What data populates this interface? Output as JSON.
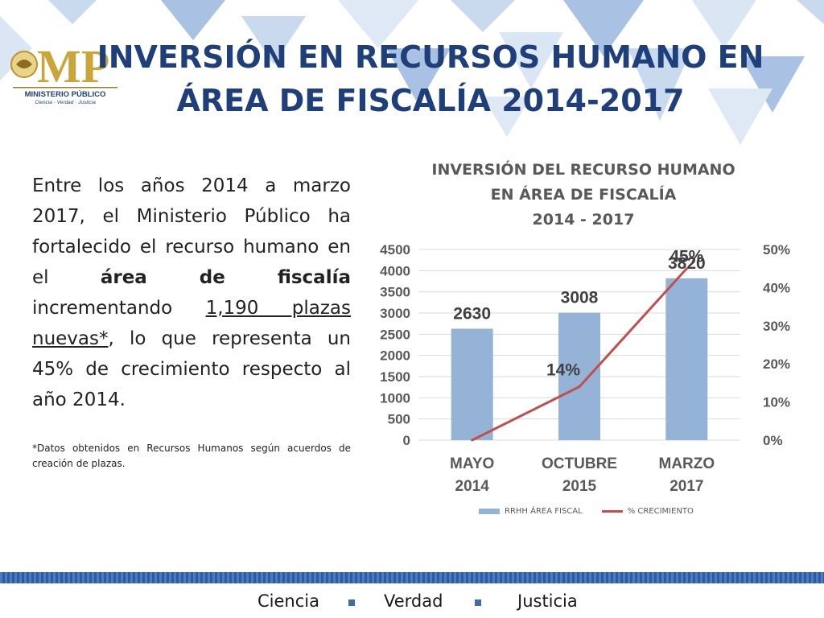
{
  "slide": {
    "title_line1": "INVERSIÓN EN RECURSOS HUMANO EN",
    "title_line2": "ÁREA DE FISCALÍA 2014-2017",
    "logo_text": "MP",
    "logo_subtitle": "MINISTERIO PÚBLICO",
    "logo_tagline": "Ciencia · Verdad · Justicia",
    "body_part1": "Entre los años 2014 a marzo 2017, el Ministerio Público ha fortalecido el recurso humano en el ",
    "body_bold": "área de fiscalía",
    "body_part2": " incrementando ",
    "body_underline": "1,190 plazas nuevas*",
    "body_part3": ", lo que representa un 45% de crecimiento respecto al año 2014.",
    "note": "*Datos obtenidos en Recursos Humanos según acuerdos de creación de plazas.",
    "footer": {
      "word1": "Ciencia",
      "word2": "Verdad",
      "word3": "Justicia"
    }
  },
  "chart_data": {
    "type": "bar",
    "title_lines": [
      "INVERSIÓN DEL RECURSO HUMANO",
      "EN ÁREA DE FISCALÍA",
      "2014 - 2017"
    ],
    "categories": [
      [
        "MAYO",
        "2014"
      ],
      [
        "OCTUBRE",
        "2015"
      ],
      [
        "MARZO",
        "2017"
      ]
    ],
    "series": [
      {
        "name": "RRHH ÁREA FISCAL",
        "type": "bar",
        "axis": "left",
        "values": [
          2630,
          3008,
          3820
        ],
        "labels": [
          "2630",
          "3008",
          "3820"
        ],
        "color": "#95b3d7"
      },
      {
        "name": "% CRECIMIENTO",
        "type": "line",
        "axis": "right",
        "values": [
          0,
          14,
          45
        ],
        "labels": [
          "",
          "14%",
          "45%"
        ],
        "color": "#c0504d"
      }
    ],
    "y_left": {
      "min": 0,
      "max": 4500,
      "ticks": [
        "0",
        "500",
        "1000",
        "1500",
        "2000",
        "2500",
        "3000",
        "3500",
        "4000",
        "4500"
      ]
    },
    "y_right": {
      "min": 0,
      "max": 50,
      "ticks": [
        "0%",
        "10%",
        "20%",
        "30%",
        "40%",
        "50%"
      ]
    },
    "grid": true,
    "legend": "bottom"
  }
}
